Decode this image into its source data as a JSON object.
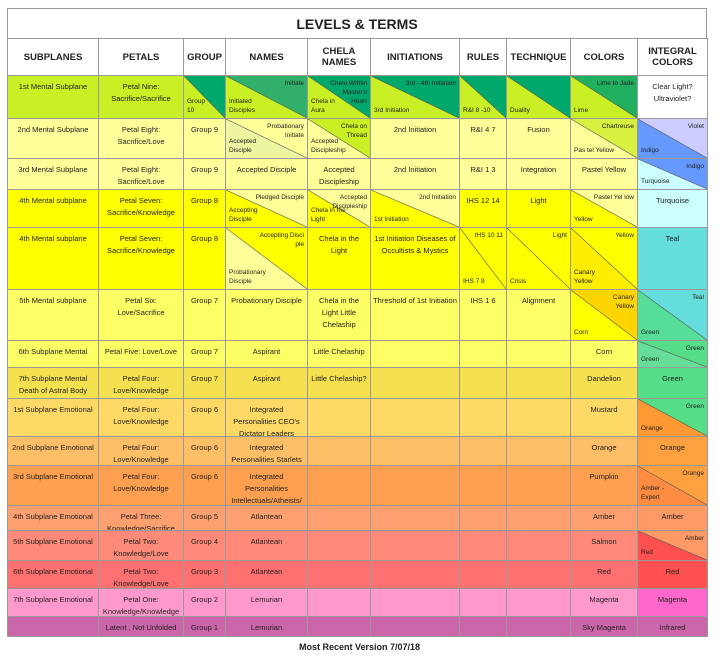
{
  "title": "LEVELS & TERMS",
  "columns": [
    "SUBPLANES",
    "PETALS",
    "GROUP",
    "NAMES",
    "CHELA NAMES",
    "INITIATIONS",
    "RULES",
    "TECHNIQUE",
    "COLORS",
    "INTEGRAL COLORS"
  ],
  "rows": [
    {
      "color": "#c8f024",
      "cells": [
        "1st Mental Subplane",
        "Petal Nine: Sacrifice/Sacrifice",
        {
          "lower": "Group 10",
          "lower_color": "#c8f024",
          "upper_color": "#00a86b"
        },
        {
          "lower": "Initiated Disciples",
          "upper": "Initiate",
          "lower_color": "#c8f024",
          "upper_color": "#30b068"
        },
        {
          "lower": "Chela in Aura",
          "upper": "Chela Within Master's Heart",
          "lower_color": "#c8f024",
          "upper_color": "#00a86b"
        },
        {
          "lower": "3rd Initiation",
          "upper": "3rd - 4th Initiation",
          "lower_color": "#c8f024",
          "upper_color": "#00a86b"
        },
        {
          "lower": "R&I 8 -10",
          "lower_color": "#c8f024",
          "upper_color": "#00a86b"
        },
        {
          "lower": "Duality",
          "lower_color": "#c8f024",
          "upper_color": "#00a86b"
        },
        {
          "lower": "Lime",
          "upper": "Lime to Jade",
          "lower_color": "#c8f024",
          "upper_color": "#20b060"
        },
        {
          "text": "Clear Light? Ultraviolet?",
          "color": "#ffffff"
        }
      ]
    },
    {
      "color": "#ffff99",
      "cells": [
        "2nd Mental Subplane",
        "Petal Eight: Sacrifice/Love",
        "Group 9",
        {
          "lower": "Accepted Disciple",
          "upper": "Probationary Initiate",
          "lower_color": "#eef5a0",
          "upper_color": "#ffff99"
        },
        {
          "lower": "Accepted Discipleship",
          "upper": "Chela on Thread",
          "lower_color": "#ffff99",
          "upper_color": "#c8f024"
        },
        "2nd Initiation",
        "R&I 4 7",
        "Fusion",
        {
          "lower": "Pas tel Yellow",
          "upper": "Chartreuse",
          "lower_color": "#ffff99",
          "upper_color": "#d8f040"
        },
        {
          "lower": "Indigo",
          "upper": "Violet",
          "lower_color": "#6699ff",
          "upper_color": "#ccccff"
        }
      ]
    },
    {
      "color": "#ffff99",
      "cells": [
        "3rd Mental Subplane",
        "Petal Eight: Sacrifice/Love",
        "Group 9",
        "Accepted Disciple",
        "Accepted Discipleship",
        "2nd Initiation",
        "R&I 1 3",
        "Integration",
        "Pastel Yellow",
        {
          "lower": "Turquoise",
          "upper": "Indigo",
          "lower_color": "#ccffff",
          "upper_color": "#6699ff"
        }
      ]
    },
    {
      "color": "#ffff00",
      "cells": [
        "4th Mental subplane",
        "Petal Seven: Sacrifice/Knowledge",
        "Group 8",
        {
          "lower": "Accepting Disciple",
          "upper": "Pledged Disciple",
          "lower_color": "#ffff00",
          "upper_color": "#ffff99"
        },
        {
          "lower": "Chela in the Light",
          "upper": "Accepted Discipleship",
          "lower_color": "#ffff00",
          "upper_color": "#ffff99"
        },
        {
          "lower": "1st Initiation",
          "upper": "2nd Initiation",
          "lower_color": "#ffff00",
          "upper_color": "#ffff99"
        },
        "IHS 12 14",
        "Light",
        {
          "lower": "Yellow",
          "upper": "Pastel Yel low",
          "lower_color": "#ffff00",
          "upper_color": "#ffff99"
        },
        {
          "text": "Turquoise",
          "color": "#ccffff"
        }
      ]
    },
    {
      "color": "#ffff00",
      "cells": [
        "4th Mental subplane",
        "Petal Seven: Sacrifice/Knowledge",
        "Group 8",
        {
          "lower": "Probationary Disciple",
          "upper": "Accepting Disci ple",
          "lower_color": "#ffff99",
          "upper_color": "#ffff00"
        },
        "Chela in the Light",
        "1st Initiation Diseases of Occultists & Mystics",
        {
          "lower": "IHS 7 9",
          "upper": "IHS 10 11",
          "lower_color": "#ffff00",
          "upper_color": "#ffff00"
        },
        {
          "lower": "Crisis",
          "upper": "Light",
          "lower_color": "#ffff00",
          "upper_color": "#ffff00"
        },
        {
          "lower": "Canary Yellow",
          "upper": "Yellow",
          "lower_color": "#ffee00",
          "upper_color": "#ffff00"
        },
        {
          "text": "Teal",
          "color": "#66dddd"
        }
      ]
    },
    {
      "color": "#ffff66",
      "cells": [
        "5th Mental subplane",
        "Petal Six: Love/Sacrifice",
        "Group 7",
        "Probationary Disciple",
        "Chela in the Light Little Chelaship",
        "Threshold of 1st Initiation",
        "IHS 1 6",
        "Alignment",
        {
          "lower": "Corn",
          "upper": "Canary Yellow",
          "lower_color": "#ffff00",
          "upper_color": "#ffd500"
        },
        {
          "lower": "Green",
          "upper": "Teal",
          "lower_color": "#55dd99",
          "upper_color": "#66dddd"
        }
      ]
    },
    {
      "color": "#ffff66",
      "cells": [
        "6th Subplane Mental",
        "Petal Five: Love/Love",
        "Group 7",
        "Aspirant",
        "Little Chelaship",
        null,
        null,
        null,
        "Corn",
        {
          "lower": "Green",
          "upper": "Green",
          "lower_color": "#66dd99",
          "upper_color": "#55dd88"
        }
      ]
    },
    {
      "color": "#f5e050",
      "cells": [
        "7th Subplane Mental Death of Astral Body",
        "Petal Four: Love/Knowledge",
        "Group 7",
        "Aspirant",
        "Little Chelaship?",
        null,
        null,
        null,
        "Dandelion",
        {
          "text": "Green",
          "color": "#55dd88"
        }
      ]
    },
    {
      "color": "#ffd966",
      "cells": [
        "1st Subplane Emotional",
        "Petal Four: Love/Knowledge",
        "Group 6",
        "Integrated Personalities CEO's Dictator Leaders",
        null,
        null,
        null,
        null,
        "Mustard",
        {
          "lower": "Orange",
          "upper": "Green",
          "lower_color": "#ff9933",
          "upper_color": "#55dd88"
        }
      ]
    },
    {
      "color": "#ffbf66",
      "cells": [
        "2nd Subplane Emotional",
        "Petal Four: Love/Knowledge",
        "Group 6",
        "Integrated Personalities Starlets",
        null,
        null,
        null,
        null,
        "Orange",
        {
          "text": "Orange",
          "color": "#ffa040"
        }
      ]
    },
    {
      "color": "#ffa050",
      "cells": [
        "3rd Subplane Emotional",
        "Petal Four: Love/Knowledge",
        "Group 6",
        "Integrated Personalities Intellectuals/Atheists/ Agnostics",
        null,
        null,
        null,
        null,
        "Pumpkin",
        {
          "lower": "Amber - Expert",
          "upper": "Orange",
          "lower_color": "#ff8c40",
          "upper_color": "#ffa040"
        }
      ]
    },
    {
      "color": "#ffa070",
      "cells": [
        "4th Subplane Emotional",
        "Petal Three: Knowledge/Sacrifice",
        "Group 5",
        "Atlantean",
        null,
        null,
        null,
        null,
        "Amber",
        {
          "text": "Amber",
          "color": "#ff9966"
        }
      ]
    },
    {
      "color": "#ff8a7a",
      "cells": [
        "5th Subplane Emotional",
        "Petal Two: Knowledge/Love",
        "Group 4",
        "Atlantean",
        null,
        null,
        null,
        null,
        "Salmon",
        {
          "lower": "Red",
          "upper": "Amber",
          "lower_color": "#ff5050",
          "upper_color": "#ff9966"
        }
      ]
    },
    {
      "color": "#ff7070",
      "cells": [
        "6th Subplane Emotional",
        "Petal Two: Knowledge/Love",
        "Group 3",
        "Atlantean",
        null,
        null,
        null,
        null,
        "Red",
        {
          "text": "Red",
          "color": "#ff5050"
        }
      ]
    },
    {
      "color": "#ff99cc",
      "cells": [
        "7th Subplane Emotional",
        "Petal One: Knowledge/Knowledge",
        "Group 2",
        "Lemurian",
        null,
        null,
        null,
        null,
        "Magenta",
        {
          "text": "Magenta",
          "color": "#ff66cc"
        }
      ]
    },
    {
      "color": "#cc66aa",
      "cells": [
        null,
        "Latent , Not Unfolded",
        "Group 1",
        "Lemurian",
        null,
        null,
        null,
        null,
        "Sky Magenta",
        "Infrared"
      ]
    }
  ],
  "footer": "Most Recent Version 7/07/18"
}
